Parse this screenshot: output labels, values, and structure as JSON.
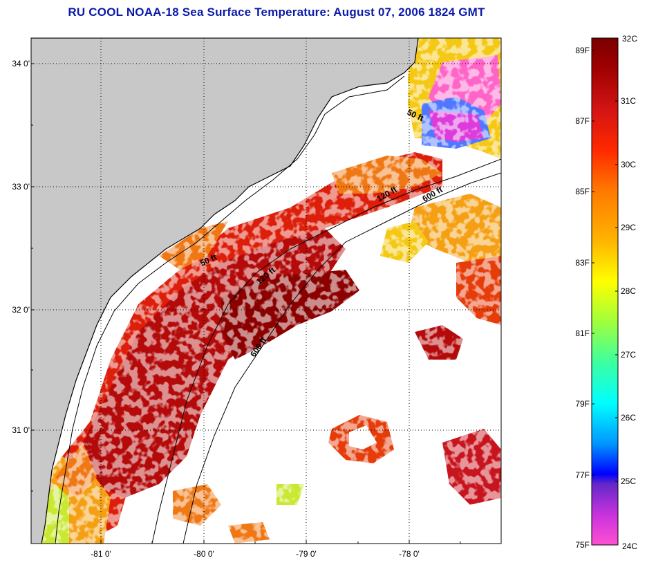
{
  "title": "RU COOL  NOAA-18  Sea Surface Temperature:  August 07, 2006 1824 GMT",
  "map": {
    "lat_labels": [
      "34 0'",
      "33 0'",
      "32 0'",
      "31 0'"
    ],
    "lon_labels": [
      "-81 0'",
      "-80 0'",
      "-79 0'",
      "-78 0'"
    ],
    "contours": [
      {
        "label": "50 ft"
      },
      {
        "label": "50 ft"
      },
      {
        "label": "120 ft"
      },
      {
        "label": "120 ft"
      },
      {
        "label": "600 ft"
      },
      {
        "label": "600 ft"
      }
    ],
    "colors": {
      "land": "#c8c8c8",
      "cloud": "#ffffff",
      "frame": "#000000"
    }
  },
  "colorbar": {
    "fahrenheit_labels": [
      "89F",
      "87F",
      "85F",
      "83F",
      "81F",
      "79F",
      "77F",
      "75F"
    ],
    "celsius_labels": [
      "32C",
      "31C",
      "30C",
      "29C",
      "28C",
      "27C",
      "26C",
      "25C",
      "24C"
    ],
    "range_c": [
      24,
      32
    ]
  }
}
